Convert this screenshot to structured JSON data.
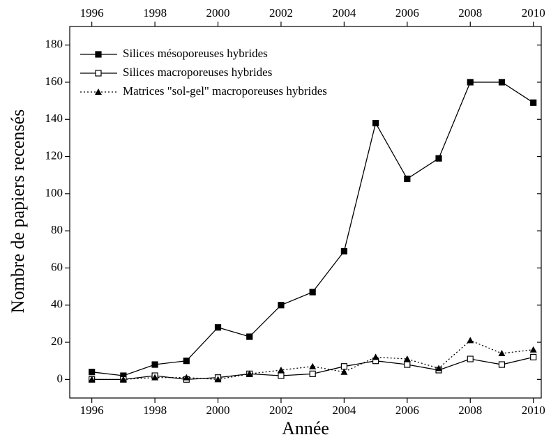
{
  "chart_data": {
    "type": "line",
    "xlabel": "Année",
    "ylabel": "Nombre de papiers recensés",
    "x": [
      1996,
      1997,
      1998,
      1999,
      2000,
      2001,
      2002,
      2003,
      2004,
      2005,
      2006,
      2007,
      2008,
      2009,
      2010
    ],
    "series": [
      {
        "name": "Silices mésoporeuses hybrides",
        "color": "#000000",
        "marker": "filled-square",
        "linestyle": "solid",
        "values": [
          4,
          2,
          8,
          10,
          28,
          23,
          40,
          47,
          69,
          138,
          108,
          119,
          160,
          160,
          149
        ]
      },
      {
        "name": "Silices macroporeuses hybrides",
        "color": "#000000",
        "marker": "open-square",
        "linestyle": "solid",
        "values": [
          0,
          0,
          2,
          0,
          1,
          3,
          2,
          3,
          7,
          10,
          8,
          5,
          11,
          8,
          12
        ]
      },
      {
        "name": "Matrices \"sol-gel\" macroporeuses hybrides",
        "color": "#000000",
        "marker": "triangle",
        "linestyle": "dotted",
        "values": [
          0,
          0,
          1,
          1,
          0,
          3,
          5,
          7,
          4,
          12,
          11,
          6,
          21,
          14,
          16
        ]
      }
    ],
    "xlim": [
      1995.3,
      2010.25
    ],
    "xticks": [
      1996,
      1998,
      2000,
      2002,
      2004,
      2006,
      2008,
      2010
    ],
    "x2ticks": [
      1996,
      1998,
      2000,
      2002,
      2004,
      2006,
      2008,
      2010
    ],
    "ylim": [
      -10,
      190
    ],
    "yticks": [
      0,
      20,
      40,
      60,
      80,
      100,
      120,
      140,
      160,
      180
    ],
    "legend": "upper-left",
    "grid": false
  }
}
